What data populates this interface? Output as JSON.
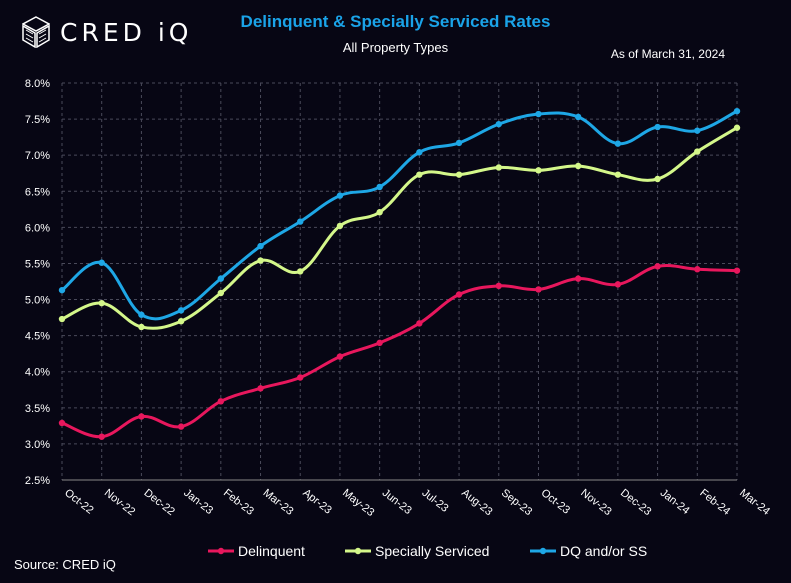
{
  "header": {
    "logo_text": "CRED iQ",
    "title": "Delinquent & Specially Serviced Rates",
    "subtitle": "All Property Types",
    "as_of": "As of March 31, 2024"
  },
  "footer": {
    "source": "Source:  CRED iQ"
  },
  "colors": {
    "background": "#070614",
    "grid": "#4a4a5a",
    "delinquent": "#e8175d",
    "specially_serviced": "#d4f78a",
    "dq_ss": "#1ea7e6",
    "title": "#1aa3e8"
  },
  "chart_data": {
    "type": "line",
    "title": "Delinquent & Specially Serviced Rates",
    "subtitle": "All Property Types",
    "xlabel": "",
    "ylabel": "",
    "ylim": [
      2.5,
      8.0
    ],
    "y_ticks": [
      "2.5%",
      "3.0%",
      "3.5%",
      "4.0%",
      "4.5%",
      "5.0%",
      "5.5%",
      "6.0%",
      "6.5%",
      "7.0%",
      "7.5%",
      "8.0%"
    ],
    "y_tick_values": [
      2.5,
      3.0,
      3.5,
      4.0,
      4.5,
      5.0,
      5.5,
      6.0,
      6.5,
      7.0,
      7.5,
      8.0
    ],
    "categories": [
      "Oct-22",
      "Nov-22",
      "Dec-22",
      "Jan-23",
      "Feb-23",
      "Mar-23",
      "Apr-23",
      "May-23",
      "Jun-23",
      "Jul-23",
      "Aug-23",
      "Sep-23",
      "Oct-23",
      "Nov-23",
      "Dec-23",
      "Jan-24",
      "Feb-24",
      "Mar-24"
    ],
    "grid": true,
    "legend_position": "bottom",
    "series": [
      {
        "name": "Delinquent",
        "color": "#e8175d",
        "values": [
          3.29,
          3.1,
          3.38,
          3.24,
          3.59,
          3.77,
          3.92,
          4.21,
          4.4,
          4.67,
          5.07,
          5.19,
          5.14,
          5.29,
          5.21,
          5.46,
          5.42,
          5.4
        ]
      },
      {
        "name": "Specially Serviced",
        "color": "#d4f78a",
        "values": [
          4.73,
          4.95,
          4.62,
          4.7,
          5.09,
          5.54,
          5.39,
          6.02,
          6.21,
          6.73,
          6.73,
          6.83,
          6.79,
          6.85,
          6.73,
          6.67,
          7.05,
          7.38
        ]
      },
      {
        "name": "DQ and/or SS",
        "color": "#1ea7e6",
        "values": [
          5.13,
          5.51,
          4.79,
          4.85,
          5.29,
          5.74,
          6.08,
          6.44,
          6.56,
          7.04,
          7.17,
          7.43,
          7.57,
          7.53,
          7.16,
          7.39,
          7.34,
          7.61
        ]
      }
    ]
  }
}
